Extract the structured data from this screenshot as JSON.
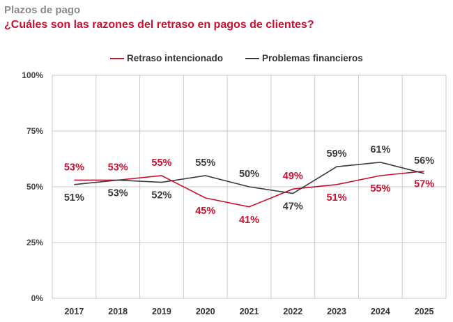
{
  "title": "Plazos de pago",
  "subtitle": "¿Cuáles son las razones del retraso en pagos de clientes?",
  "chart_data": {
    "type": "line",
    "title": "Plazos de pago",
    "subtitle": "¿Cuáles son las razones del retraso en pagos de clientes?",
    "x": [
      "2017",
      "2018",
      "2019",
      "2020",
      "2021",
      "2022",
      "2023",
      "2024",
      "2025"
    ],
    "y_ticks": [
      "0%",
      "25%",
      "50%",
      "75%",
      "100%"
    ],
    "ylim": [
      0,
      100
    ],
    "grid": true,
    "legend_position": "top-center",
    "series": [
      {
        "name": "Retraso intencionado",
        "color": "#c8102e",
        "values": [
          53,
          53,
          55,
          45,
          41,
          49,
          51,
          55,
          57
        ],
        "labels": [
          "53%",
          "53%",
          "55%",
          "45%",
          "41%",
          "49%",
          "51%",
          "55%",
          "57%"
        ]
      },
      {
        "name": "Problemas financieros",
        "color": "#3a3a3a",
        "values": [
          51,
          53,
          52,
          55,
          50,
          47,
          59,
          61,
          56
        ],
        "labels": [
          "51%",
          "53%",
          "52%",
          "55%",
          "50%",
          "47%",
          "59%",
          "61%",
          "56%"
        ]
      }
    ]
  }
}
